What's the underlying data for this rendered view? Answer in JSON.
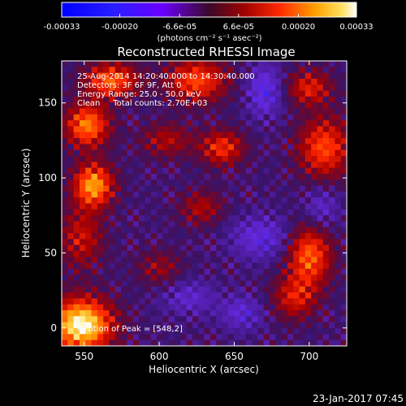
{
  "chart_data": {
    "type": "heatmap",
    "title": "Reconstructed RHESSI Image",
    "xlabel": "Heliocentric X (arcsec)",
    "ylabel": "Heliocentric Y (arcsec)",
    "xlim": [
      535,
      725
    ],
    "ylim": [
      -12,
      178
    ],
    "x_ticks": [
      550,
      600,
      650,
      700
    ],
    "y_ticks": [
      0,
      50,
      100,
      150
    ],
    "colorbar": {
      "range": [
        -0.00033,
        0.00033
      ],
      "tick_values": [
        -0.00033,
        -0.0002,
        -6.6e-05,
        6.6e-05,
        0.0002,
        0.00033
      ],
      "tick_labels": [
        "-0.00033",
        "-0.00020",
        "-6.6e-05",
        "6.6e-05",
        "0.00020",
        "0.00033"
      ],
      "units_label": "(photons cm⁻² s⁻¹ asec⁻²)"
    },
    "annotations": [
      "25-Aug-2014 14:20:40.000 to 14:30:40.000",
      "Detectors: 3F 6F 9F, Att 0",
      "Energy Range: 25.0 - 50.0 keV",
      "Clean     Total counts: 2.70E+03"
    ],
    "peak": {
      "label": "Position of Peak = [548,2]",
      "x": 548,
      "y": 2
    },
    "intensity_blobs": [
      {
        "x": 548,
        "y": 2,
        "value": 0.00033,
        "sx": 14,
        "sy": 12
      },
      {
        "x": 556,
        "y": 95,
        "value": 0.00025,
        "sx": 9,
        "sy": 10
      },
      {
        "x": 552,
        "y": 135,
        "value": 0.00022,
        "sx": 10,
        "sy": 10
      },
      {
        "x": 568,
        "y": 165,
        "value": 0.0002,
        "sx": 12,
        "sy": 8
      },
      {
        "x": 548,
        "y": 60,
        "value": 0.00012,
        "sx": 10,
        "sy": 14
      },
      {
        "x": 625,
        "y": 165,
        "value": 0.00018,
        "sx": 14,
        "sy": 10
      },
      {
        "x": 642,
        "y": 120,
        "value": 0.00016,
        "sx": 10,
        "sy": 8
      },
      {
        "x": 605,
        "y": 125,
        "value": 0.0001,
        "sx": 12,
        "sy": 8
      },
      {
        "x": 710,
        "y": 120,
        "value": 0.00018,
        "sx": 12,
        "sy": 14
      },
      {
        "x": 700,
        "y": 160,
        "value": 0.00014,
        "sx": 10,
        "sy": 8
      },
      {
        "x": 700,
        "y": 48,
        "value": 0.0002,
        "sx": 10,
        "sy": 14
      },
      {
        "x": 690,
        "y": 20,
        "value": 0.00013,
        "sx": 10,
        "sy": 10
      },
      {
        "x": 628,
        "y": 80,
        "value": 0.0001,
        "sx": 10,
        "sy": 8
      },
      {
        "x": 600,
        "y": 40,
        "value": 8e-05,
        "sx": 10,
        "sy": 8
      },
      {
        "x": 670,
        "y": 158,
        "value": -0.00012,
        "sx": 8,
        "sy": 12
      },
      {
        "x": 668,
        "y": 60,
        "value": -0.0001,
        "sx": 14,
        "sy": 10
      },
      {
        "x": 655,
        "y": 10,
        "value": -9e-05,
        "sx": 10,
        "sy": 8
      },
      {
        "x": 620,
        "y": 20,
        "value": -8e-05,
        "sx": 12,
        "sy": 8
      },
      {
        "x": 708,
        "y": 80,
        "value": -8e-05,
        "sx": 8,
        "sy": 10
      }
    ]
  },
  "footer": {
    "date": "23-Jan-2017 07:45"
  }
}
